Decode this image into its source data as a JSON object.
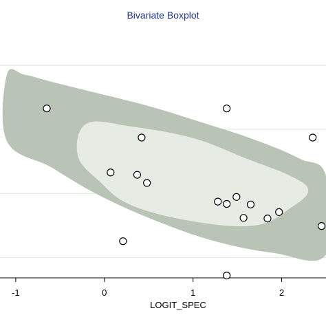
{
  "chart_data": {
    "type": "scatter",
    "title": "Bivariate Boxplot",
    "xlabel": "LOGIT_SPEC",
    "ylabel": "",
    "xlim": [
      -1.1,
      2.5
    ],
    "ylim": [
      -2.15,
      2.15
    ],
    "x_ticks": [
      -1,
      0,
      1,
      2
    ],
    "x_tick_labels": [
      "-1",
      "0",
      "1",
      "2"
    ],
    "y_gridlines": [
      -1.8,
      -0.7,
      0.4,
      1.5
    ],
    "points": [
      {
        "x": -0.65,
        "y": 0.76
      },
      {
        "x": 1.38,
        "y": 0.76
      },
      {
        "x": 0.42,
        "y": 0.26
      },
      {
        "x": 2.35,
        "y": 0.26
      },
      {
        "x": 0.07,
        "y": -0.34
      },
      {
        "x": 0.37,
        "y": -0.38
      },
      {
        "x": 0.48,
        "y": -0.52
      },
      {
        "x": 1.28,
        "y": -0.84
      },
      {
        "x": 1.38,
        "y": -0.88
      },
      {
        "x": 1.49,
        "y": -0.76
      },
      {
        "x": 1.65,
        "y": -0.89
      },
      {
        "x": 1.97,
        "y": -1.02
      },
      {
        "x": 1.57,
        "y": -1.12
      },
      {
        "x": 1.84,
        "y": -1.13
      },
      {
        "x": 2.45,
        "y": -1.26
      },
      {
        "x": 0.21,
        "y": -1.52
      },
      {
        "x": 1.38,
        "y": -2.11
      }
    ],
    "outer_region": [
      [
        -1.1,
        1.34
      ],
      [
        -0.9,
        1.34
      ],
      [
        -0.6,
        1.22
      ],
      [
        -0.1,
        1.03
      ],
      [
        0.5,
        0.8
      ],
      [
        1.1,
        0.52
      ],
      [
        1.7,
        0.22
      ],
      [
        2.2,
        -0.1
      ],
      [
        2.5,
        -0.4
      ],
      [
        2.5,
        -1.75
      ],
      [
        1.9,
        -1.72
      ],
      [
        1.2,
        -1.5
      ],
      [
        0.5,
        -1.12
      ],
      [
        -0.1,
        -0.7
      ],
      [
        -0.6,
        -0.25
      ],
      [
        -1.1,
        0.2
      ]
    ],
    "inner_region": [
      [
        -0.2,
        0.5
      ],
      [
        0.3,
        0.45
      ],
      [
        1.0,
        0.25
      ],
      [
        1.6,
        -0.1
      ],
      [
        2.1,
        -0.4
      ],
      [
        2.3,
        -0.65
      ],
      [
        2.1,
        -0.95
      ],
      [
        1.7,
        -1.25
      ],
      [
        1.0,
        -1.18
      ],
      [
        0.3,
        -0.9
      ],
      [
        -0.05,
        -0.5
      ],
      [
        -0.3,
        -0.05
      ]
    ],
    "colors": {
      "outer_fill": "#b9c3b6",
      "inner_fill": "#e6ebe4",
      "gridline": "#d6ead6",
      "title": "#1f3a93",
      "point_stroke": "#000000",
      "point_fill": "#ffffff"
    }
  }
}
